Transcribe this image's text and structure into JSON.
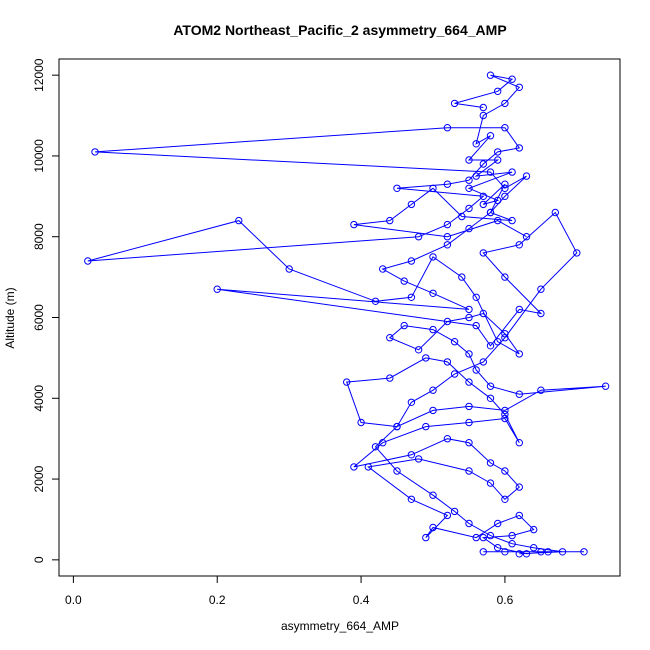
{
  "chart_data": {
    "type": "line",
    "title": "ATOM2 Northeast_Pacific_2 asymmetry_664_AMP",
    "xlabel": "asymmetry_664_AMP",
    "ylabel": "Altitude (m)",
    "xlim": [
      -0.02,
      0.76
    ],
    "ylim": [
      -400,
      12400
    ],
    "xticks": [
      0.0,
      0.2,
      0.4,
      0.6
    ],
    "xtick_labels": [
      "0.0",
      "0.2",
      "0.4",
      "0.6"
    ],
    "yticks": [
      0,
      2000,
      4000,
      6000,
      8000,
      10000,
      12000
    ],
    "ytick_labels": [
      "0",
      "2000",
      "4000",
      "6000",
      "8000",
      "10000",
      "12000"
    ],
    "grid": false,
    "legend": "none",
    "series": [
      {
        "color": "#0000ff",
        "marker": "open-circle",
        "points": [
          [
            0.57,
            200
          ],
          [
            0.6,
            200
          ],
          [
            0.65,
            200
          ],
          [
            0.71,
            200
          ],
          [
            0.66,
            200
          ],
          [
            0.63,
            150
          ],
          [
            0.59,
            300
          ],
          [
            0.57,
            550
          ],
          [
            0.61,
            600
          ],
          [
            0.64,
            750
          ],
          [
            0.62,
            1100
          ],
          [
            0.59,
            900
          ],
          [
            0.56,
            550
          ],
          [
            0.5,
            800
          ],
          [
            0.49,
            550
          ],
          [
            0.52,
            1100
          ],
          [
            0.47,
            1500
          ],
          [
            0.41,
            2300
          ],
          [
            0.48,
            2500
          ],
          [
            0.55,
            2200
          ],
          [
            0.58,
            1900
          ],
          [
            0.6,
            1500
          ],
          [
            0.62,
            1800
          ],
          [
            0.6,
            2200
          ],
          [
            0.58,
            2400
          ],
          [
            0.55,
            2900
          ],
          [
            0.52,
            3000
          ],
          [
            0.47,
            2600
          ],
          [
            0.39,
            2300
          ],
          [
            0.43,
            2900
          ],
          [
            0.49,
            3300
          ],
          [
            0.55,
            3400
          ],
          [
            0.6,
            3500
          ],
          [
            0.62,
            2900
          ],
          [
            0.6,
            3600
          ],
          [
            0.58,
            4000
          ],
          [
            0.55,
            4400
          ],
          [
            0.52,
            4900
          ],
          [
            0.49,
            5000
          ],
          [
            0.44,
            4500
          ],
          [
            0.38,
            4400
          ],
          [
            0.4,
            3400
          ],
          [
            0.45,
            3300
          ],
          [
            0.5,
            3700
          ],
          [
            0.55,
            3800
          ],
          [
            0.6,
            3700
          ],
          [
            0.65,
            4200
          ],
          [
            0.74,
            4300
          ],
          [
            0.62,
            4100
          ],
          [
            0.58,
            4300
          ],
          [
            0.56,
            4700
          ],
          [
            0.55,
            5100
          ],
          [
            0.53,
            5400
          ],
          [
            0.5,
            5700
          ],
          [
            0.46,
            5800
          ],
          [
            0.44,
            5500
          ],
          [
            0.48,
            5200
          ],
          [
            0.52,
            5900
          ],
          [
            0.55,
            6000
          ],
          [
            0.57,
            6100
          ],
          [
            0.6,
            5600
          ],
          [
            0.62,
            5100
          ],
          [
            0.59,
            5400
          ],
          [
            0.56,
            6500
          ],
          [
            0.54,
            7000
          ],
          [
            0.5,
            7500
          ],
          [
            0.47,
            6500
          ],
          [
            0.42,
            6400
          ],
          [
            0.3,
            7200
          ],
          [
            0.23,
            8400
          ],
          [
            0.02,
            7400
          ],
          [
            0.48,
            8000
          ],
          [
            0.52,
            8300
          ],
          [
            0.55,
            8700
          ],
          [
            0.57,
            9000
          ],
          [
            0.45,
            9200
          ],
          [
            0.52,
            9300
          ],
          [
            0.55,
            9400
          ],
          [
            0.57,
            9800
          ],
          [
            0.59,
            10100
          ],
          [
            0.62,
            10200
          ],
          [
            0.6,
            10700
          ],
          [
            0.52,
            10700
          ],
          [
            0.03,
            10100
          ],
          [
            0.58,
            9600
          ],
          [
            0.6,
            9200
          ],
          [
            0.63,
            9500
          ],
          [
            0.6,
            9000
          ],
          [
            0.58,
            8600
          ],
          [
            0.55,
            8200
          ],
          [
            0.52,
            7800
          ],
          [
            0.47,
            7400
          ],
          [
            0.43,
            7200
          ],
          [
            0.46,
            6900
          ],
          [
            0.5,
            6600
          ],
          [
            0.55,
            6200
          ],
          [
            0.2,
            6700
          ],
          [
            0.56,
            5800
          ],
          [
            0.58,
            5300
          ],
          [
            0.62,
            6200
          ],
          [
            0.65,
            6100
          ],
          [
            0.6,
            7000
          ],
          [
            0.57,
            7600
          ],
          [
            0.62,
            7800
          ],
          [
            0.67,
            8600
          ],
          [
            0.7,
            7600
          ],
          [
            0.65,
            6700
          ],
          [
            0.6,
            5500
          ],
          [
            0.57,
            4900
          ],
          [
            0.53,
            4600
          ],
          [
            0.5,
            4200
          ],
          [
            0.47,
            3900
          ],
          [
            0.45,
            3300
          ],
          [
            0.42,
            2800
          ],
          [
            0.45,
            2200
          ],
          [
            0.5,
            1600
          ],
          [
            0.53,
            1200
          ],
          [
            0.55,
            900
          ],
          [
            0.58,
            600
          ],
          [
            0.61,
            400
          ],
          [
            0.64,
            300
          ],
          [
            0.68,
            200
          ],
          [
            0.62,
            150
          ]
        ],
        "upper_cluster": [
          [
            0.57,
            11200
          ],
          [
            0.53,
            11300
          ],
          [
            0.59,
            11600
          ],
          [
            0.61,
            11900
          ],
          [
            0.58,
            12000
          ],
          [
            0.62,
            11700
          ],
          [
            0.6,
            11300
          ],
          [
            0.57,
            11000
          ],
          [
            0.56,
            10300
          ],
          [
            0.58,
            10500
          ],
          [
            0.55,
            9900
          ],
          [
            0.59,
            9900
          ],
          [
            0.56,
            9500
          ],
          [
            0.61,
            9600
          ],
          [
            0.55,
            9200
          ],
          [
            0.59,
            8900
          ],
          [
            0.57,
            8800
          ],
          [
            0.6,
            9300
          ],
          [
            0.58,
            8600
          ],
          [
            0.61,
            8400
          ],
          [
            0.54,
            8500
          ],
          [
            0.5,
            9200
          ],
          [
            0.47,
            8800
          ],
          [
            0.44,
            8400
          ],
          [
            0.39,
            8300
          ],
          [
            0.52,
            8000
          ],
          [
            0.59,
            8400
          ],
          [
            0.63,
            8000
          ]
        ]
      }
    ]
  }
}
